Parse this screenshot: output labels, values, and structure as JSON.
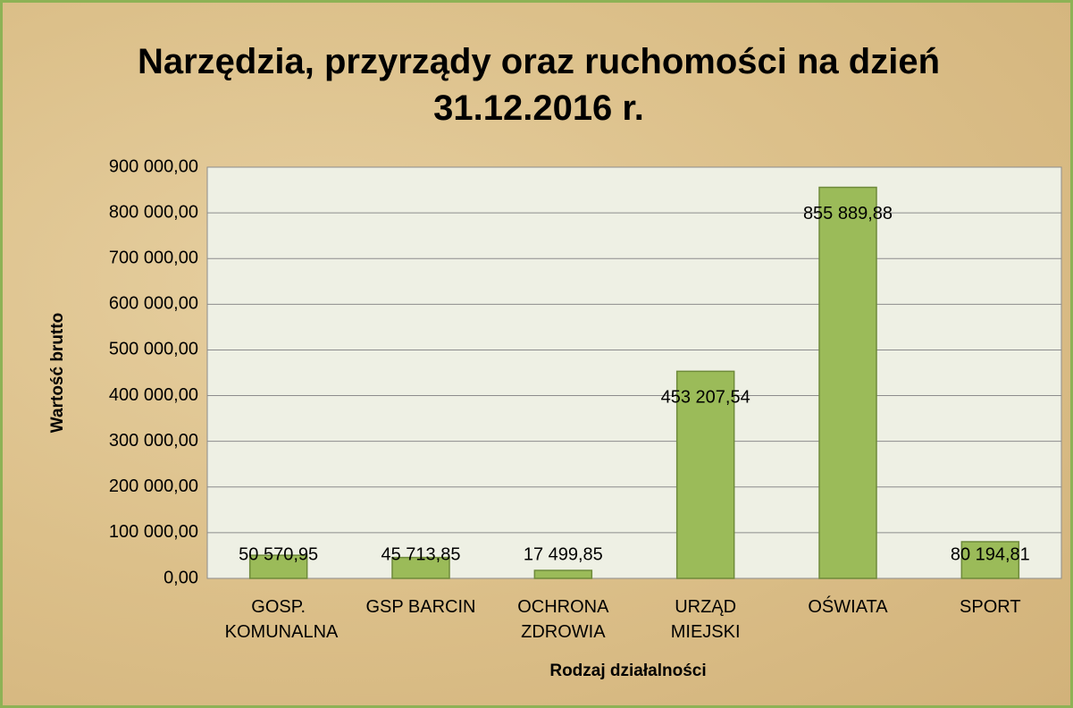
{
  "chart_data": {
    "type": "bar",
    "title": "Narzędzia, przyrządy oraz ruchomości na dzień 31.12.2016 r.",
    "x_label": "Rodzaj działalności",
    "y_label": "Wartość brutto",
    "categories": [
      "GOSP. KOMUNALNA",
      "GSP BARCIN",
      "OCHRONA ZDROWIA",
      "URZĄD MIEJSKI",
      "OŚWIATA",
      "SPORT"
    ],
    "values": [
      50570.95,
      45713.85,
      17499.85,
      453207.54,
      855889.88,
      80194.81
    ],
    "value_labels": [
      "50 570,95",
      "45 713,85",
      "17 499,85",
      "453 207,54",
      "855 889,88",
      "80 194,81"
    ],
    "color": "#9bbb59",
    "ylim": [
      0,
      900000
    ],
    "yticks": [
      {
        "value": 0,
        "label": "0,00"
      },
      {
        "value": 100000,
        "label": "100 000,00"
      },
      {
        "value": 200000,
        "label": "200 000,00"
      },
      {
        "value": 300000,
        "label": "300 000,00"
      },
      {
        "value": 400000,
        "label": "400 000,00"
      },
      {
        "value": 500000,
        "label": "500 000,00"
      },
      {
        "value": 600000,
        "label": "600 000,00"
      },
      {
        "value": 700000,
        "label": "700 000,00"
      },
      {
        "value": 800000,
        "label": "800 000,00"
      },
      {
        "value": 900000,
        "label": "900 000,00"
      }
    ],
    "grid": true
  }
}
